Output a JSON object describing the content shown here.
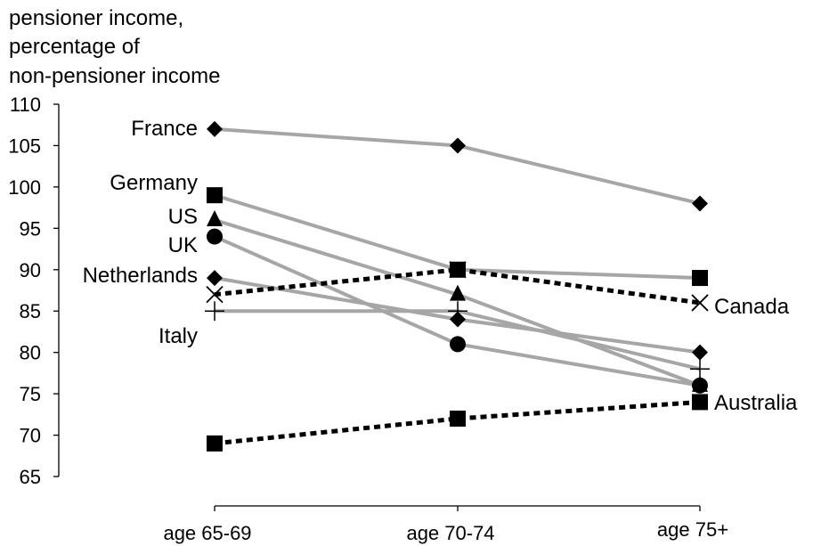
{
  "chart_data": {
    "type": "line",
    "ylabel_lines": [
      "pensioner income,",
      "percentage of",
      "non-pensioner income"
    ],
    "xlabel": "",
    "categories": [
      "age 65-69",
      "age 70-74",
      "age 75+"
    ],
    "ylim": [
      65,
      110
    ],
    "yticks": [
      65,
      70,
      75,
      80,
      85,
      90,
      95,
      100,
      105,
      110
    ],
    "grid": false,
    "legend": "none (series labelled directly)",
    "series": [
      {
        "name": "France",
        "values": [
          107,
          105,
          98
        ],
        "marker": "diamond",
        "line": "solid",
        "color": "#a6a6a6",
        "label_side": "left"
      },
      {
        "name": "Germany",
        "values": [
          99,
          90,
          89
        ],
        "marker": "square",
        "line": "solid",
        "color": "#a6a6a6",
        "label_side": "left"
      },
      {
        "name": "US",
        "values": [
          96,
          87,
          76
        ],
        "marker": "triangle",
        "line": "solid",
        "color": "#a6a6a6",
        "label_side": "left"
      },
      {
        "name": "UK",
        "values": [
          94,
          81,
          76
        ],
        "marker": "circle",
        "line": "solid",
        "color": "#a6a6a6",
        "label_side": "left"
      },
      {
        "name": "Netherlands",
        "values": [
          89,
          84,
          80
        ],
        "marker": "diamond",
        "line": "solid",
        "color": "#a6a6a6",
        "label_side": "left"
      },
      {
        "name": "Italy",
        "values": [
          85,
          85,
          78
        ],
        "marker": "plus",
        "line": "solid",
        "color": "#a6a6a6",
        "label_side": "left"
      },
      {
        "name": "Canada",
        "values": [
          87,
          90,
          86
        ],
        "marker": "x",
        "line": "dotted",
        "color": "#000000",
        "label_side": "right"
      },
      {
        "name": "Australia",
        "values": [
          69,
          72,
          74
        ],
        "marker": "square",
        "line": "dotted",
        "color": "#000000",
        "label_side": "right"
      }
    ]
  }
}
